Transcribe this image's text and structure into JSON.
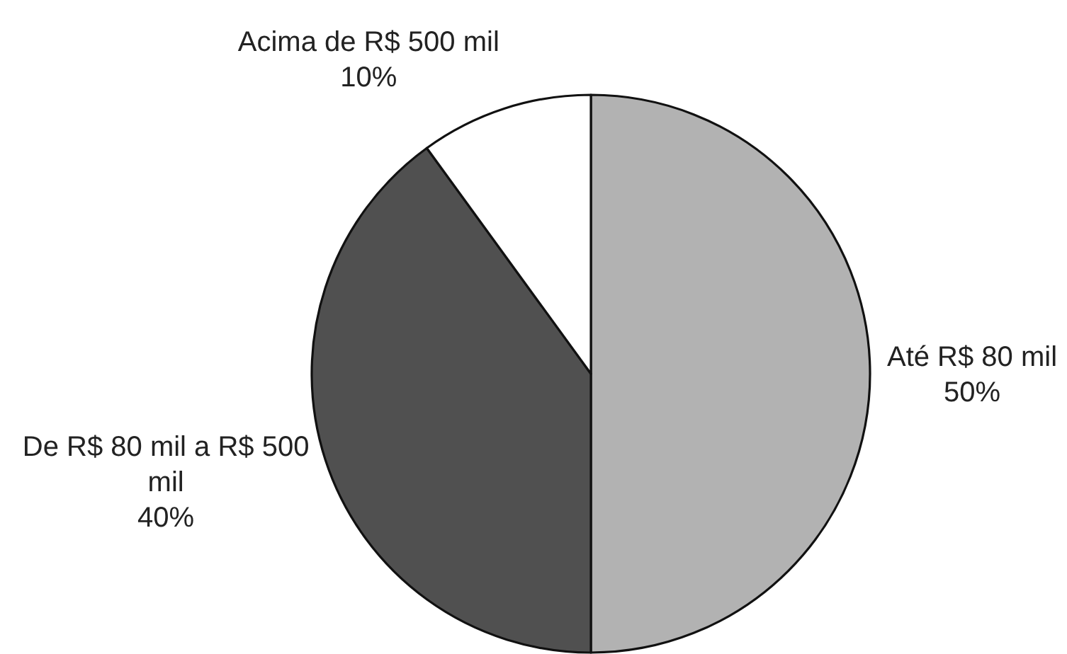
{
  "chart_data": {
    "type": "pie",
    "categories": [
      "Até R$ 80 mil",
      "De R$ 80 mil a R$ 500 mil",
      "Acima de R$ 500 mil"
    ],
    "values": [
      50,
      40,
      10
    ],
    "value_labels": [
      "50%",
      "40%",
      "10%"
    ],
    "colors": [
      "#b2b2b2",
      "#505050",
      "#ffffff"
    ]
  }
}
